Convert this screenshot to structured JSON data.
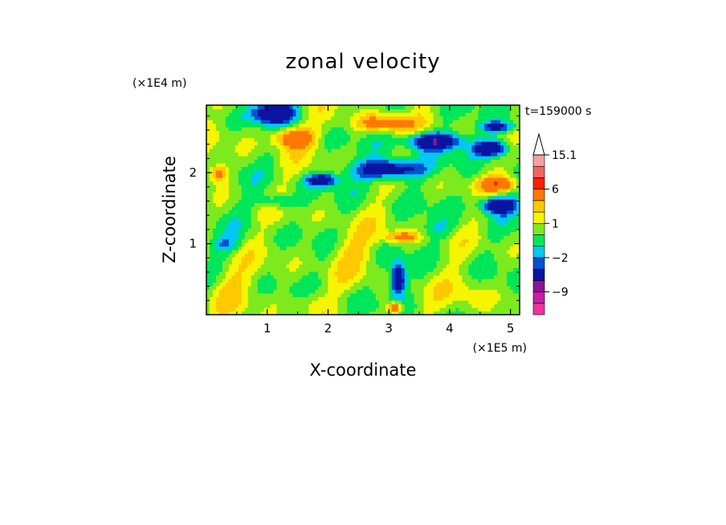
{
  "chart_data": {
    "type": "heatmap",
    "title": "zonal velocity",
    "xlabel": "X-coordinate",
    "ylabel": "Z-coordinate",
    "x_multiplier": "(×1E5 m)",
    "y_multiplier": "(×1E4 m)",
    "time_label": "t=159000 s",
    "xlim": [
      0,
      5.15
    ],
    "ylim": [
      0,
      2.95
    ],
    "x_ticks": [
      1,
      2,
      3,
      4,
      5
    ],
    "x_tick_labels": [
      "1",
      "2",
      "3",
      "4",
      "5"
    ],
    "y_ticks": [
      1,
      2
    ],
    "y_tick_labels": [
      "1",
      "2"
    ],
    "colorbar": {
      "levels": [
        -15,
        -12,
        -9,
        -6,
        -3,
        -2,
        -1,
        0,
        1,
        2,
        3,
        6,
        9,
        12,
        15.1
      ],
      "colors": [
        "#f0329e",
        "#c81ea5",
        "#8c1496",
        "#0a14a0",
        "#0050d2",
        "#00c8f0",
        "#00e65a",
        "#7dea1e",
        "#f5f500",
        "#ffc800",
        "#ff7800",
        "#ff1e00",
        "#f06464",
        "#f5a0a0"
      ],
      "labels": [
        "15.1",
        "6",
        "1",
        "−2",
        "−9"
      ],
      "label_values": [
        15.1,
        6,
        1,
        -2,
        -9
      ],
      "extend": "max"
    }
  }
}
